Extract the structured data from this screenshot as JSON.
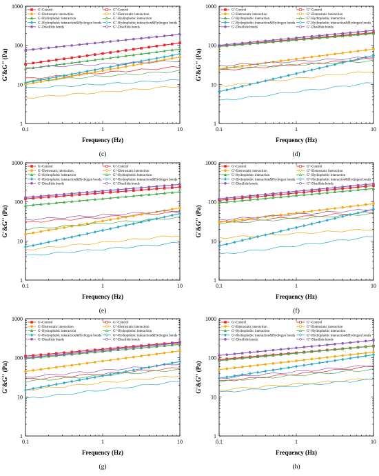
{
  "figure": {
    "x_axis_label": "Frequency (Hz)",
    "y_axis_label": "G'&G'' (Pa)",
    "x_ticks": [
      "0.1",
      "1",
      "10"
    ],
    "y_ticks": [
      "1",
      "10",
      "100",
      "1000"
    ],
    "x_scale": "log",
    "y_scale": "log",
    "xlim": [
      0.1,
      10
    ],
    "ylim": [
      1,
      1000
    ]
  },
  "series_styles": [
    {
      "name": "G'-Control",
      "color": "#e8262b",
      "marker": "square",
      "filled": true
    },
    {
      "name": "G''-Control",
      "color": "#e8262b",
      "marker": "square",
      "filled": false
    },
    {
      "name": "G'-Eletrostatic interaction",
      "color": "#f7a80f",
      "marker": "circle",
      "filled": true
    },
    {
      "name": "G''-Eletrostatic interaction",
      "color": "#f7a80f",
      "marker": "circle",
      "filled": false
    },
    {
      "name": "G'-Hydrophobic interaction",
      "color": "#4aab4e",
      "marker": "triangle",
      "filled": true
    },
    {
      "name": "G''-Hydrophobic interaction",
      "color": "#4aab4e",
      "marker": "triangle",
      "filled": false
    },
    {
      "name": "G'-Hydrophobic interaction&Hydrogen bonds",
      "color": "#2aa9c9",
      "marker": "diamond",
      "filled": true
    },
    {
      "name": "G''-Hydrophobic interaction&Hydrogen bonds",
      "color": "#2aa9c9",
      "marker": "diamond",
      "filled": false
    },
    {
      "name": "G'-Disulfide bonds",
      "color": "#8a58b6",
      "marker": "circle",
      "filled": true
    },
    {
      "name": "G''-Disulfide bonds",
      "color": "#8a58b6",
      "marker": "circle",
      "filled": false
    }
  ],
  "chart_data": [
    {
      "panel": "(c)",
      "type": "line",
      "x_range": [
        0.1,
        10
      ],
      "series": [
        {
          "name": "G'-Control",
          "start": 33,
          "end": 115
        },
        {
          "name": "G''-Control",
          "start": 14,
          "end": 28
        },
        {
          "name": "G'-Eletrostatic interaction",
          "start": 10,
          "end": 50
        },
        {
          "name": "G''-Eletrostatic interaction",
          "start": 4.5,
          "end": 9
        },
        {
          "name": "G'-Hydrophobic interaction",
          "start": 25,
          "end": 80
        },
        {
          "name": "G''-Hydrophobic interaction",
          "start": 12,
          "end": 22
        },
        {
          "name": "G'-Hydrophobic interaction&Hydrogen bonds",
          "start": 11,
          "end": 60
        },
        {
          "name": "G''-Hydrophobic interaction&Hydrogen bonds",
          "start": 8,
          "end": 13
        },
        {
          "name": "G'-Disulfide bonds",
          "start": 75,
          "end": 190
        },
        {
          "name": "G''-Disulfide bonds",
          "start": 27,
          "end": 40
        }
      ]
    },
    {
      "panel": "(d)",
      "type": "line",
      "x_range": [
        0.1,
        10
      ],
      "series": [
        {
          "name": "G'-Control",
          "start": 95,
          "end": 210
        },
        {
          "name": "G''-Control",
          "start": 23,
          "end": 45
        },
        {
          "name": "G'-Eletrostatic interaction",
          "start": 25,
          "end": 80
        },
        {
          "name": "G''-Eletrostatic interaction",
          "start": 9,
          "end": 22
        },
        {
          "name": "G'-Hydrophobic interaction",
          "start": 93,
          "end": 200
        },
        {
          "name": "G''-Hydrophobic interaction",
          "start": 25,
          "end": 40
        },
        {
          "name": "G'-Hydrophobic interaction&Hydrogen bonds",
          "start": 6.5,
          "end": 55
        },
        {
          "name": "G''-Hydrophobic interaction&Hydrogen bonds",
          "start": 3.8,
          "end": 11
        },
        {
          "name": "G'-Disulfide bonds",
          "start": 100,
          "end": 240
        },
        {
          "name": "G''-Disulfide bonds",
          "start": 30,
          "end": 50
        }
      ]
    },
    {
      "panel": "(e)",
      "type": "line",
      "x_range": [
        0.1,
        10
      ],
      "series": [
        {
          "name": "G'-Control",
          "start": 120,
          "end": 240
        },
        {
          "name": "G''-Control",
          "start": 30,
          "end": 55
        },
        {
          "name": "G'-Eletrostatic interaction",
          "start": 15,
          "end": 70
        },
        {
          "name": "G''-Eletrostatic interaction",
          "start": 6,
          "end": 14
        },
        {
          "name": "G'-Hydrophobic interaction",
          "start": 80,
          "end": 180
        },
        {
          "name": "G''-Hydrophobic interaction",
          "start": 20,
          "end": 40
        },
        {
          "name": "G'-Hydrophobic interaction&Hydrogen bonds",
          "start": 7,
          "end": 50
        },
        {
          "name": "G''-Hydrophobic interaction&Hydrogen bonds",
          "start": 4.2,
          "end": 9
        },
        {
          "name": "G'-Disulfide bonds",
          "start": 130,
          "end": 280
        },
        {
          "name": "G''-Disulfide bonds",
          "start": 35,
          "end": 60
        }
      ]
    },
    {
      "panel": "(f)",
      "type": "line",
      "x_range": [
        0.1,
        10
      ],
      "series": [
        {
          "name": "G'-Control",
          "start": 110,
          "end": 260
        },
        {
          "name": "G''-Control",
          "start": 30,
          "end": 55
        },
        {
          "name": "G'-Eletrostatic interaction",
          "start": 30,
          "end": 90
        },
        {
          "name": "G''-Eletrostatic interaction",
          "start": 12,
          "end": 20
        },
        {
          "name": "G'-Hydrophobic interaction",
          "start": 95,
          "end": 220
        },
        {
          "name": "G''-Hydrophobic interaction",
          "start": 28,
          "end": 50
        },
        {
          "name": "G'-Hydrophobic interaction&Hydrogen bonds",
          "start": 7.5,
          "end": 65
        },
        {
          "name": "G''-Hydrophobic interaction&Hydrogen bonds",
          "start": 4.5,
          "end": 13
        },
        {
          "name": "G'-Disulfide bonds",
          "start": 120,
          "end": 290
        },
        {
          "name": "G''-Disulfide bonds",
          "start": 35,
          "end": 65
        }
      ]
    },
    {
      "panel": "(g)",
      "type": "line",
      "x_range": [
        0.1,
        10
      ],
      "series": [
        {
          "name": "G'-Control",
          "start": 110,
          "end": 250
        },
        {
          "name": "G''-Control",
          "start": 28,
          "end": 55
        },
        {
          "name": "G'-Eletrostatic interaction",
          "start": 45,
          "end": 150
        },
        {
          "name": "G''-Eletrostatic interaction",
          "start": 15,
          "end": 35
        },
        {
          "name": "G'-Hydrophobic interaction",
          "start": 95,
          "end": 220
        },
        {
          "name": "G''-Hydrophobic interaction",
          "start": 25,
          "end": 50
        },
        {
          "name": "G'-Hydrophobic interaction&Hydrogen bonds",
          "start": 15,
          "end": 80
        },
        {
          "name": "G''-Hydrophobic interaction&Hydrogen bonds",
          "start": 9,
          "end": 25
        },
        {
          "name": "G'-Disulfide bonds",
          "start": 100,
          "end": 240
        },
        {
          "name": "G''-Disulfide bonds",
          "start": 32,
          "end": 70
        }
      ]
    },
    {
      "panel": "(h)",
      "type": "line",
      "x_range": [
        0.1,
        10
      ],
      "series": [
        {
          "name": "G'-Control",
          "start": 90,
          "end": 200
        },
        {
          "name": "G''-Control",
          "start": 25,
          "end": 60
        },
        {
          "name": "G'-Eletrostatic interaction",
          "start": 50,
          "end": 140
        },
        {
          "name": "G''-Eletrostatic interaction",
          "start": 15,
          "end": 30
        },
        {
          "name": "G'-Hydrophobic interaction",
          "start": 85,
          "end": 200
        },
        {
          "name": "G''-Hydrophobic interaction",
          "start": 25,
          "end": 50
        },
        {
          "name": "G'-Hydrophobic interaction&Hydrogen bonds",
          "start": 30,
          "end": 120
        },
        {
          "name": "G''-Hydrophobic interaction&Hydrogen bonds",
          "start": 13,
          "end": 28
        },
        {
          "name": "G'-Disulfide bonds",
          "start": 115,
          "end": 280
        },
        {
          "name": "G''-Disulfide bonds",
          "start": 30,
          "end": 65
        }
      ]
    }
  ]
}
